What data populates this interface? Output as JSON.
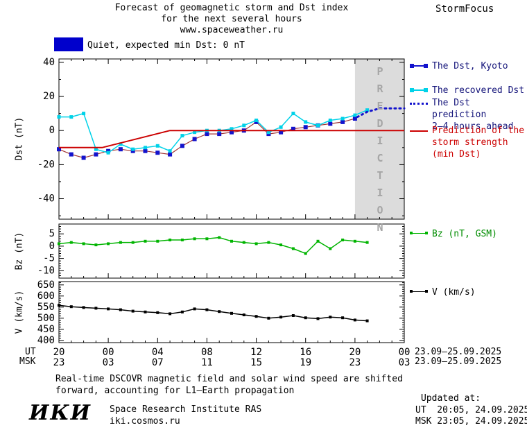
{
  "header": {
    "title_line1": "Forecast of geomagnetic storm and Dst index",
    "title_line2": "for the next several hours",
    "title_line3": "www.spaceweather.ru",
    "brand": "StormFocus"
  },
  "status": {
    "label": "Quiet, expected min Dst: 0 nT",
    "box_color": "#0000cc"
  },
  "legend": {
    "kyoto": "The Dst, Kyoto",
    "recovered": "The recovered Dst",
    "prediction_lines": [
      "The Dst prediction",
      "2–4 hours ahead"
    ],
    "storm_lines": [
      "Prediction of the",
      "storm strength",
      "(min Dst)"
    ],
    "bz": "Bz (nT, GSM)",
    "v": "V (km/s)"
  },
  "axis": {
    "ut_label": "UT",
    "msk_label": "MSK",
    "ut_ticks": [
      "20",
      "00",
      "04",
      "08",
      "12",
      "16",
      "20",
      "00"
    ],
    "msk_ticks": [
      "23",
      "03",
      "07",
      "11",
      "15",
      "19",
      "23",
      "03"
    ],
    "ut_daterange": "23.09–25.09.2025",
    "msk_daterange": "23.09–25.09.2025"
  },
  "footnote": {
    "line1": "Real-time DSCOVR magnetic field and solar wind speed are shifted",
    "line2": "forward, accounting for L1–Earth propagation"
  },
  "footer": {
    "logo": "ИКИ",
    "institute": "Space Research Institute RAS",
    "site": "iki.cosmos.ru",
    "updated_label": "Updated at:",
    "updated_ut": "UT  20:05, 24.09.2025",
    "updated_msk": "MSK 23:05, 24.09.2025"
  },
  "chart_data": [
    {
      "type": "line",
      "ylabel": "Dst (nT)",
      "ylim": [
        -52,
        42
      ],
      "yticks": [
        40,
        20,
        0,
        -20,
        -40
      ],
      "yminor": 10,
      "xlim": [
        0,
        28
      ],
      "xtick_hours": [
        0,
        4,
        8,
        12,
        16,
        20,
        24,
        28
      ],
      "x_unit": "hours from 20:00 UT 23.09.2025",
      "prediction_band": {
        "start_hour": 24,
        "end_hour": 28,
        "label": "PREDICTION",
        "color": "#dcdcdc"
      },
      "series": [
        {
          "id": "dst-kyoto",
          "name": "The Dst, Kyoto",
          "marker": "square",
          "marker_size": 6,
          "marker_color": "#1313cd",
          "line_color": "#a03232",
          "line_width": 1.2,
          "x": [
            0,
            1,
            2,
            3,
            4,
            5,
            6,
            7,
            8,
            9,
            10,
            11,
            12,
            13,
            14,
            15,
            16,
            17,
            18,
            19,
            20,
            21,
            22,
            23,
            24
          ],
          "values": [
            -11,
            -14,
            -16,
            -14,
            -12,
            -11,
            -12,
            -12,
            -13,
            -14,
            -9,
            -5,
            -2,
            -2,
            -1,
            0,
            5,
            -2,
            -1,
            1,
            2,
            3,
            4,
            5,
            7
          ]
        },
        {
          "id": "recovered-dst",
          "name": "The recovered Dst",
          "marker": "square",
          "marker_size": 5,
          "marker_color": "#00d2e8",
          "line_color": "#00d2e8",
          "line_width": 1.5,
          "x": [
            0,
            1,
            2,
            3,
            4,
            5,
            6,
            7,
            8,
            9,
            10,
            11,
            12,
            13,
            14,
            15,
            16,
            17,
            18,
            19,
            20,
            21,
            22,
            23,
            24,
            25
          ],
          "values": [
            8,
            8,
            10,
            -11,
            -13,
            -8,
            -11,
            -10,
            -9,
            -12,
            -3,
            -1,
            0,
            0,
            1,
            3,
            6,
            -1,
            2,
            10,
            5,
            3,
            6,
            7,
            9,
            12
          ]
        },
        {
          "id": "dst-prediction",
          "name": "The Dst prediction 2–4 hours ahead",
          "style": "dotted",
          "line_color": "#1313cd",
          "line_width": 3,
          "x": [
            24.2,
            25,
            26,
            28
          ],
          "values": [
            8,
            11,
            13,
            13
          ]
        },
        {
          "id": "storm-strength",
          "name": "Prediction of the storm strength (min Dst)",
          "line_color": "#cc0000",
          "line_width": 2,
          "x": [
            0,
            3.5,
            9,
            28
          ],
          "values": [
            -10,
            -10,
            0,
            0
          ]
        }
      ]
    },
    {
      "type": "line",
      "ylabel": "Bz (nT)",
      "ylim": [
        -13,
        9
      ],
      "yticks": [
        5,
        0,
        -5,
        -10
      ],
      "yminor": 1,
      "xlim": [
        0,
        28
      ],
      "xtick_hours": [
        0,
        4,
        8,
        12,
        16,
        20,
        24,
        28
      ],
      "series": [
        {
          "id": "bz",
          "name": "Bz (nT, GSM)",
          "marker": "square",
          "marker_size": 4,
          "marker_color": "#00b400",
          "line_color": "#00b400",
          "line_width": 1.5,
          "x": [
            0,
            1,
            2,
            3,
            4,
            5,
            6,
            7,
            8,
            9,
            10,
            11,
            12,
            13,
            14,
            15,
            16,
            17,
            18,
            19,
            20,
            21,
            22,
            23,
            24,
            25
          ],
          "values": [
            1,
            1.5,
            1,
            0.5,
            1,
            1.5,
            1.5,
            2,
            2,
            2.5,
            2.5,
            3,
            3,
            3.5,
            2,
            1.5,
            1,
            1.5,
            0.5,
            -1,
            -3,
            2,
            -1,
            2.5,
            2,
            1.5
          ]
        }
      ]
    },
    {
      "type": "line",
      "ylabel": "V (km/s)",
      "ylim": [
        390,
        665
      ],
      "yticks": [
        650,
        600,
        550,
        500,
        450,
        400
      ],
      "yminor": 10,
      "xlim": [
        0,
        28
      ],
      "xtick_hours": [
        0,
        4,
        8,
        12,
        16,
        20,
        24,
        28
      ],
      "series": [
        {
          "id": "v",
          "name": "V (km/s)",
          "marker": "square",
          "marker_size": 4,
          "marker_color": "#000000",
          "line_color": "#000000",
          "line_width": 1.5,
          "x": [
            0,
            1,
            2,
            3,
            4,
            5,
            6,
            7,
            8,
            9,
            10,
            11,
            12,
            13,
            14,
            15,
            16,
            17,
            18,
            19,
            20,
            21,
            22,
            23,
            24,
            25
          ],
          "values": [
            558,
            552,
            548,
            545,
            542,
            538,
            532,
            528,
            525,
            520,
            528,
            542,
            538,
            530,
            522,
            515,
            508,
            500,
            505,
            512,
            502,
            498,
            505,
            502,
            492,
            488
          ]
        }
      ]
    }
  ]
}
